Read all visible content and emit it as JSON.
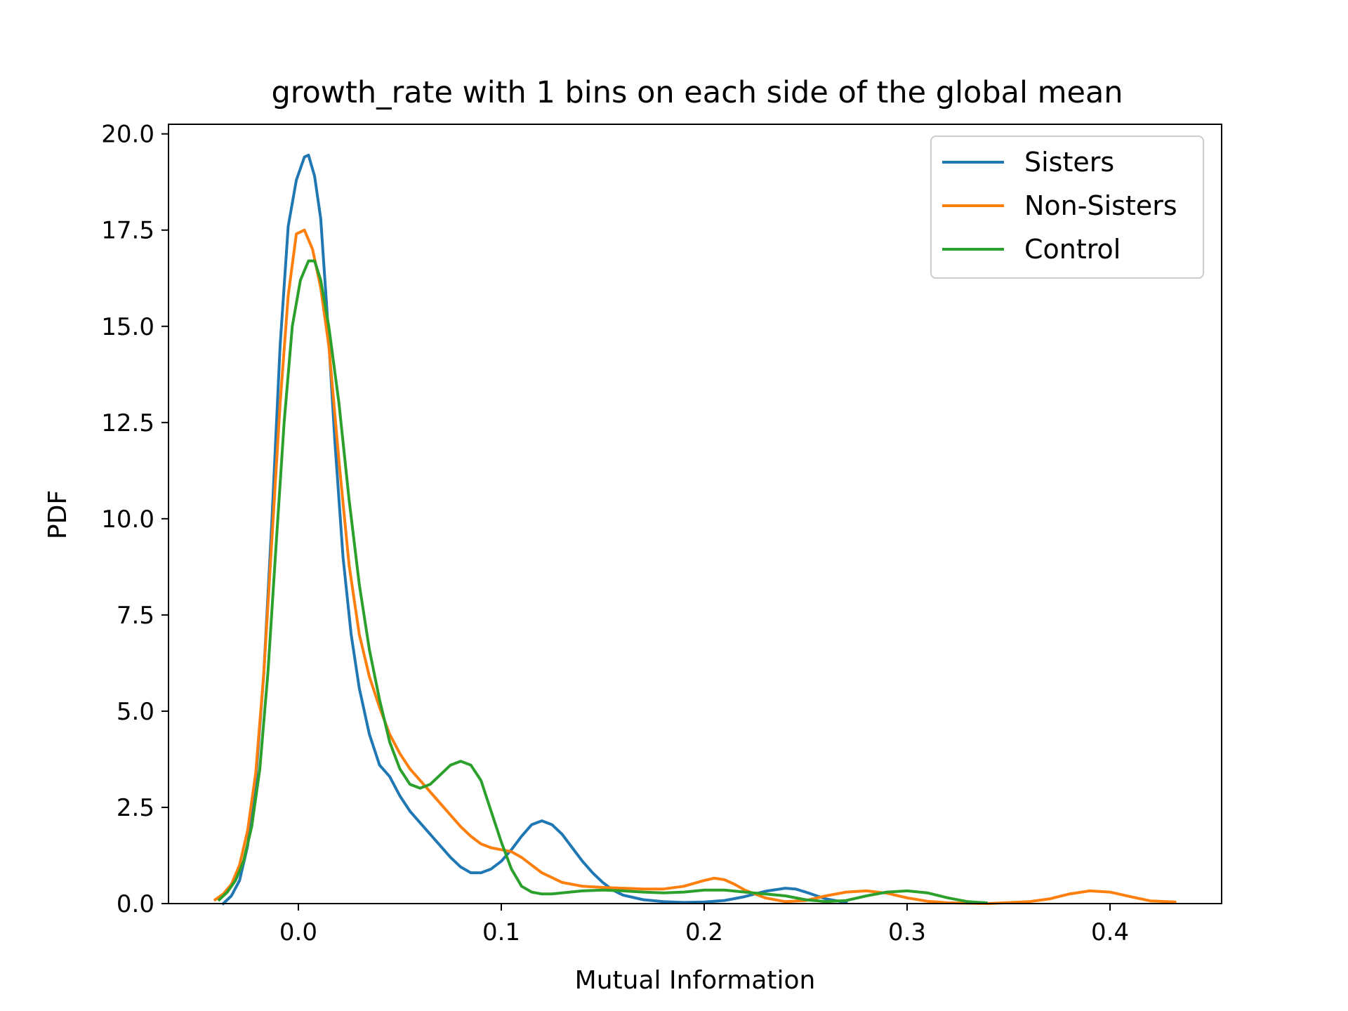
{
  "chart_data": {
    "type": "line",
    "title": "growth_rate with 1 bins on each side of the global mean",
    "xlabel": "Mutual Information",
    "ylabel": "PDF",
    "xlim": [
      -0.064,
      0.455
    ],
    "ylim": [
      0,
      20.25
    ],
    "xticks": [
      0.0,
      0.1,
      0.2,
      0.3,
      0.4
    ],
    "xtick_labels": [
      "0.0",
      "0.1",
      "0.2",
      "0.3",
      "0.4"
    ],
    "yticks": [
      0,
      2.5,
      5,
      7.5,
      10,
      12.5,
      15,
      17.5,
      20
    ],
    "ytick_labels": [
      "0.0",
      "2.5",
      "5.0",
      "7.5",
      "10.0",
      "12.5",
      "15.0",
      "17.5",
      "20.0"
    ],
    "grid": false,
    "legend_position": "top-right",
    "series": [
      {
        "name": "Sisters",
        "color": "#1f77b4",
        "x": [
          -0.037,
          -0.033,
          -0.029,
          -0.025,
          -0.021,
          -0.017,
          -0.013,
          -0.009,
          -0.005,
          -0.001,
          0.003,
          0.005,
          0.008,
          0.011,
          0.014,
          0.018,
          0.022,
          0.026,
          0.03,
          0.035,
          0.04,
          0.045,
          0.05,
          0.055,
          0.06,
          0.065,
          0.07,
          0.075,
          0.08,
          0.085,
          0.09,
          0.095,
          0.1,
          0.105,
          0.11,
          0.115,
          0.12,
          0.125,
          0.13,
          0.135,
          0.14,
          0.145,
          0.15,
          0.155,
          0.16,
          0.17,
          0.18,
          0.19,
          0.2,
          0.21,
          0.22,
          0.23,
          0.24,
          0.245,
          0.25,
          0.26,
          0.27
        ],
        "y": [
          0.0,
          0.2,
          0.6,
          1.5,
          3.2,
          6.0,
          10.0,
          14.5,
          17.6,
          18.8,
          19.4,
          19.45,
          18.9,
          17.8,
          15.5,
          12.0,
          9.0,
          7.0,
          5.6,
          4.4,
          3.6,
          3.3,
          2.8,
          2.4,
          2.1,
          1.8,
          1.5,
          1.2,
          0.95,
          0.8,
          0.8,
          0.9,
          1.1,
          1.4,
          1.75,
          2.05,
          2.15,
          2.05,
          1.8,
          1.45,
          1.1,
          0.8,
          0.55,
          0.35,
          0.22,
          0.1,
          0.05,
          0.03,
          0.04,
          0.08,
          0.18,
          0.32,
          0.4,
          0.38,
          0.3,
          0.12,
          0.03
        ]
      },
      {
        "name": "Non-Sisters",
        "color": "#ff7f0e",
        "x": [
          -0.041,
          -0.037,
          -0.033,
          -0.029,
          -0.025,
          -0.021,
          -0.017,
          -0.013,
          -0.009,
          -0.005,
          -0.001,
          0.003,
          0.007,
          0.011,
          0.015,
          0.02,
          0.025,
          0.03,
          0.035,
          0.04,
          0.045,
          0.05,
          0.055,
          0.06,
          0.065,
          0.07,
          0.075,
          0.08,
          0.085,
          0.09,
          0.095,
          0.1,
          0.105,
          0.11,
          0.115,
          0.12,
          0.13,
          0.14,
          0.15,
          0.16,
          0.17,
          0.18,
          0.19,
          0.2,
          0.205,
          0.21,
          0.215,
          0.22,
          0.23,
          0.24,
          0.25,
          0.26,
          0.27,
          0.28,
          0.29,
          0.3,
          0.31,
          0.32,
          0.34,
          0.36,
          0.37,
          0.38,
          0.39,
          0.4,
          0.41,
          0.42,
          0.432
        ],
        "y": [
          0.1,
          0.25,
          0.5,
          1.0,
          1.9,
          3.4,
          6.0,
          9.5,
          13.0,
          15.8,
          17.4,
          17.5,
          17.0,
          16.0,
          14.5,
          11.5,
          8.8,
          7.0,
          5.9,
          5.1,
          4.4,
          3.9,
          3.5,
          3.2,
          2.9,
          2.6,
          2.3,
          2.0,
          1.75,
          1.55,
          1.45,
          1.4,
          1.35,
          1.2,
          1.0,
          0.8,
          0.55,
          0.45,
          0.42,
          0.4,
          0.38,
          0.38,
          0.45,
          0.6,
          0.66,
          0.62,
          0.5,
          0.35,
          0.15,
          0.05,
          0.08,
          0.2,
          0.3,
          0.33,
          0.27,
          0.15,
          0.06,
          0.02,
          0.0,
          0.05,
          0.12,
          0.25,
          0.33,
          0.3,
          0.18,
          0.07,
          0.04
        ]
      },
      {
        "name": "Control",
        "color": "#2ca02c",
        "x": [
          -0.039,
          -0.035,
          -0.031,
          -0.027,
          -0.023,
          -0.019,
          -0.015,
          -0.011,
          -0.007,
          -0.003,
          0.001,
          0.005,
          0.008,
          0.011,
          0.015,
          0.02,
          0.025,
          0.03,
          0.035,
          0.04,
          0.045,
          0.05,
          0.055,
          0.06,
          0.065,
          0.07,
          0.075,
          0.08,
          0.085,
          0.09,
          0.095,
          0.1,
          0.105,
          0.11,
          0.115,
          0.12,
          0.125,
          0.13,
          0.14,
          0.15,
          0.16,
          0.17,
          0.18,
          0.19,
          0.2,
          0.21,
          0.22,
          0.23,
          0.24,
          0.25,
          0.26,
          0.27,
          0.28,
          0.29,
          0.3,
          0.31,
          0.32,
          0.33,
          0.339
        ],
        "y": [
          0.1,
          0.3,
          0.6,
          1.1,
          2.0,
          3.5,
          6.0,
          9.3,
          12.5,
          15.0,
          16.2,
          16.7,
          16.7,
          16.2,
          15.0,
          13.0,
          10.5,
          8.3,
          6.6,
          5.3,
          4.2,
          3.5,
          3.1,
          3.0,
          3.1,
          3.35,
          3.6,
          3.7,
          3.6,
          3.2,
          2.4,
          1.6,
          0.9,
          0.45,
          0.3,
          0.25,
          0.25,
          0.28,
          0.33,
          0.35,
          0.33,
          0.3,
          0.28,
          0.3,
          0.35,
          0.35,
          0.3,
          0.25,
          0.2,
          0.1,
          0.05,
          0.08,
          0.2,
          0.3,
          0.33,
          0.28,
          0.15,
          0.05,
          0.02
        ]
      }
    ]
  }
}
